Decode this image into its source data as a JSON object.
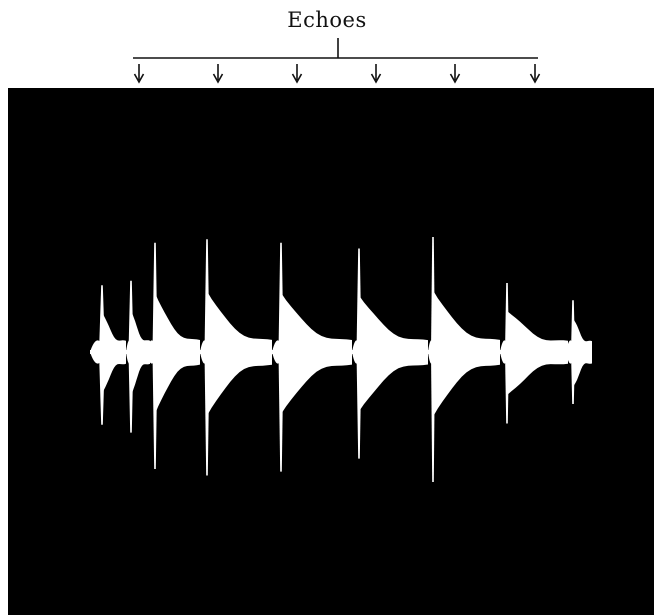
{
  "annotation": {
    "label": "Echoes",
    "arrow_count": 6
  },
  "colors": {
    "background": "#ffffff",
    "screen": "#000000",
    "trace": "#ffffff",
    "ink": "#111111"
  },
  "trace": {
    "pulses": [
      {
        "type": "emitted",
        "amplitude_up": 0.58,
        "amplitude_down": 0.56
      },
      {
        "type": "emitted",
        "amplitude_up": 0.62,
        "amplitude_down": 0.62
      },
      {
        "type": "emitted",
        "amplitude_up": 0.95,
        "amplitude_down": 0.9
      },
      {
        "type": "emitted",
        "amplitude_up": 0.98,
        "amplitude_down": 0.95
      },
      {
        "type": "emitted",
        "amplitude_up": 0.95,
        "amplitude_down": 0.92
      },
      {
        "type": "emitted",
        "amplitude_up": 0.9,
        "amplitude_down": 0.82
      },
      {
        "type": "emitted",
        "amplitude_up": 1.0,
        "amplitude_down": 1.0
      },
      {
        "type": "emitted",
        "amplitude_up": 0.6,
        "amplitude_down": 0.55
      },
      {
        "type": "emitted",
        "amplitude_up": 0.45,
        "amplitude_down": 0.4
      }
    ]
  }
}
